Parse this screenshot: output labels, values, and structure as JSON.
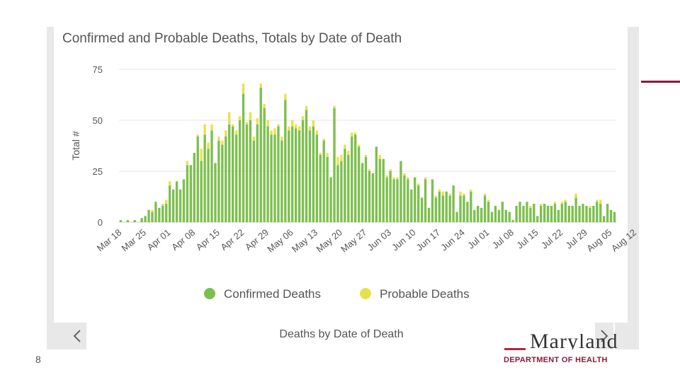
{
  "colors": {
    "confirmed": "#7cbf4e",
    "probable": "#e8e24a",
    "accent": "#8b1a3a",
    "grid": "#e4e4e4",
    "text": "#555555"
  },
  "footer": {
    "label": "Deaths by Date of Death",
    "prev_icon": "chevron-left-icon",
    "next_icon": "chevron-right-icon"
  },
  "page": {
    "number": "8"
  },
  "logo": {
    "wordmark": "Maryland",
    "department": "DEPARTMENT OF HEALTH"
  },
  "chart_data": {
    "type": "bar",
    "stacked": true,
    "title": "Confirmed and Probable Deaths, Totals by Date of Death",
    "xlabel": "",
    "ylabel": "Total #",
    "ylim": [
      0,
      75
    ],
    "yticks": [
      0,
      25,
      50,
      75
    ],
    "grid": true,
    "legend_position": "bottom",
    "x_tick_labels": [
      "Mar 18",
      "Mar 25",
      "Apr 01",
      "Apr 08",
      "Apr 15",
      "Apr 22",
      "Apr 29",
      "May 06",
      "May 13",
      "May 20",
      "May 27",
      "Jun 03",
      "Jun 10",
      "Jun 17",
      "Jun 24",
      "Jul 01",
      "Jul 08",
      "Jul 15",
      "Jul 22",
      "Jul 29",
      "Aug 05",
      "Aug 12"
    ],
    "series": [
      {
        "name": "Confirmed Deaths",
        "values": [
          1,
          0,
          1,
          0,
          1,
          0,
          2,
          3,
          6,
          5,
          10,
          7,
          8,
          9,
          18,
          16,
          20,
          16,
          21,
          28,
          28,
          34,
          42,
          30,
          43,
          36,
          45,
          29,
          40,
          38,
          42,
          48,
          47,
          43,
          50,
          63,
          48,
          50,
          40,
          48,
          66,
          56,
          47,
          43,
          43,
          47,
          40,
          60,
          45,
          47,
          46,
          45,
          50,
          55,
          45,
          47,
          43,
          33,
          40,
          32,
          22,
          56,
          28,
          30,
          36,
          33,
          42,
          43,
          37,
          29,
          32,
          25,
          24,
          37,
          31,
          31,
          22,
          25,
          21,
          21,
          30,
          23,
          21,
          16,
          22,
          18,
          12,
          21,
          7,
          21,
          12,
          15,
          13,
          15,
          13,
          18,
          5,
          13,
          13,
          10,
          15,
          6,
          8,
          7,
          13,
          10,
          5,
          8,
          6,
          10,
          6,
          5,
          1,
          8,
          10,
          8,
          10,
          7,
          9,
          3,
          8,
          9,
          8,
          8,
          9,
          6,
          9,
          10,
          8,
          8,
          12,
          8,
          9,
          8,
          7,
          8,
          10,
          9,
          3,
          9,
          6,
          5
        ]
      },
      {
        "name": "Probable Deaths",
        "values": [
          0,
          0,
          0,
          0,
          0,
          0,
          0,
          0,
          0,
          1,
          0,
          0,
          1,
          2,
          2,
          0,
          0,
          0,
          0,
          2,
          0,
          0,
          1,
          6,
          5,
          3,
          3,
          0,
          2,
          2,
          3,
          6,
          1,
          2,
          2,
          5,
          1,
          4,
          2,
          3,
          2,
          2,
          3,
          2,
          3,
          1,
          2,
          3,
          2,
          3,
          2,
          2,
          2,
          2,
          2,
          3,
          2,
          1,
          1,
          2,
          0,
          1,
          4,
          3,
          2,
          2,
          2,
          1,
          1,
          0,
          1,
          1,
          0,
          0,
          2,
          0,
          1,
          1,
          1,
          1,
          0,
          1,
          1,
          0,
          0,
          1,
          0,
          1,
          0,
          0,
          1,
          1,
          2,
          0,
          1,
          0,
          0,
          2,
          1,
          0,
          1,
          0,
          0,
          0,
          1,
          1,
          0,
          0,
          0,
          0,
          0,
          0,
          0,
          0,
          0,
          0,
          0,
          1,
          0,
          0,
          1,
          0,
          0,
          0,
          1,
          0,
          1,
          1,
          0,
          0,
          2,
          0,
          0,
          0,
          1,
          0,
          1,
          2,
          0,
          0,
          0,
          0
        ]
      }
    ]
  }
}
